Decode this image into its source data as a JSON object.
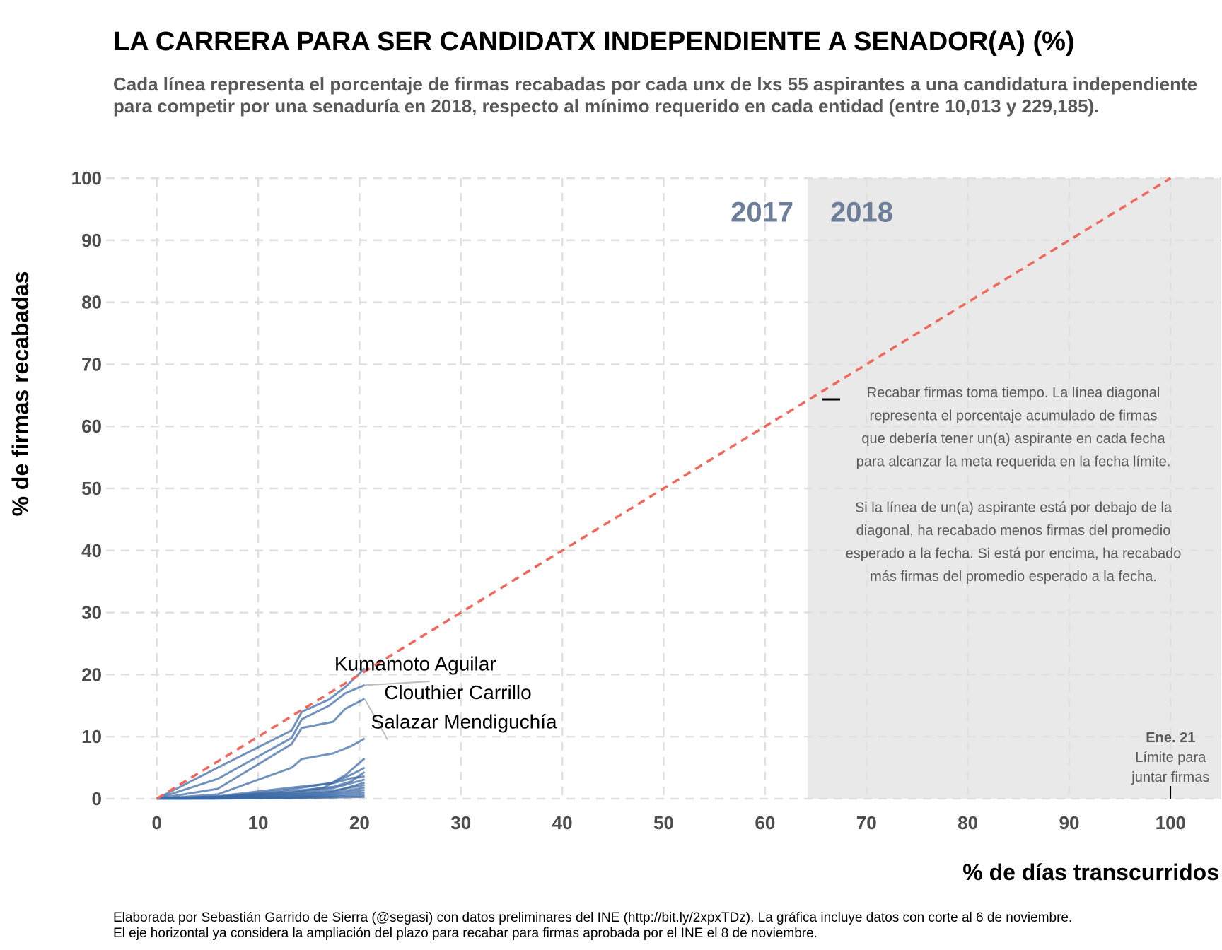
{
  "title": "LA CARRERA PARA SER CANDIDATX INDEPENDIENTE A SENADOR(A) (%)",
  "subtitle": "Cada línea representa el porcentaje de firmas recabadas por cada unx de lxs 55 aspirantes a una candidatura independiente para competir por una senaduría en 2018, respecto al mínimo requerido en cada entidad (entre 10,013 y 229,185).",
  "footer": {
    "line1": "Elaborada por Sebastián Garrido de Sierra (@segasi) con datos preliminares del INE (http://bit.ly/2xpxTDz). La gráfica incluye datos con corte al 6 de noviembre.",
    "line2": "El eje horizontal ya considera la ampliación del plazo para recabar para firmas aprobada por el INE el 8 de noviembre."
  },
  "chart_data": {
    "type": "line",
    "xlabel": "% de días transcurridos",
    "ylabel": "% de firmas recabadas",
    "xlim": [
      -5,
      105
    ],
    "ylim": [
      0,
      100
    ],
    "x_ticks": [
      0,
      10,
      20,
      30,
      40,
      50,
      60,
      70,
      80,
      90,
      100
    ],
    "y_ticks": [
      0,
      10,
      20,
      30,
      40,
      50,
      60,
      70,
      80,
      90,
      100
    ],
    "grid": true,
    "shaded_region": {
      "x_start": 64.2,
      "x_end": 105,
      "color": "#e9e9e9"
    },
    "year_labels": {
      "left": "2017",
      "right": "2018"
    },
    "reference_line": {
      "name": "diagonal",
      "x": [
        0,
        100
      ],
      "y": [
        0,
        100
      ],
      "color": "#f0685c",
      "style": "dashed"
    },
    "series_color": "#3c6aa5",
    "series": [
      {
        "name": "Kumamoto Aguilar",
        "x": [
          0,
          6,
          13.3,
          14.3,
          17,
          18.6,
          20.5
        ],
        "y": [
          0,
          5,
          11,
          14,
          16,
          18,
          21
        ]
      },
      {
        "name": "Clouthier Carrillo",
        "x": [
          0,
          6,
          13.3,
          14.3,
          17,
          18.6,
          20.5
        ],
        "y": [
          0,
          3.2,
          9.8,
          12.8,
          15,
          17,
          18.3
        ]
      },
      {
        "name": "Salazar Mendiguchía",
        "x": [
          0,
          6,
          13.3,
          14.3,
          17.4,
          18.6,
          20.5
        ],
        "y": [
          0,
          1.6,
          8.8,
          11.4,
          12.4,
          14.5,
          16.1
        ]
      },
      {
        "values_x": null,
        "x": [
          0,
          6,
          13.3,
          14.3,
          17.4,
          19.2,
          20.5
        ],
        "y": [
          0,
          0.7,
          5,
          6.4,
          7.3,
          8.5,
          9.7
        ]
      },
      {
        "x": [
          0,
          6,
          13.3,
          16.5,
          18.6,
          20.5
        ],
        "y": [
          0,
          0.3,
          1,
          1.8,
          3.8,
          6.5
        ]
      },
      {
        "x": [
          0,
          6,
          13.3,
          17.4,
          19.2,
          20.5
        ],
        "y": [
          0,
          0.2,
          1.5,
          2.6,
          3.9,
          5.0
        ]
      },
      {
        "x": [
          0,
          6,
          13.3,
          17.4,
          19.2,
          20.5
        ],
        "y": [
          0,
          0.3,
          1.2,
          1.9,
          2.8,
          4.3
        ]
      },
      {
        "x": [
          0,
          6,
          13.3,
          17.4,
          19.2,
          20.5
        ],
        "y": [
          0,
          0.4,
          1.8,
          2.5,
          3.3,
          3.6
        ]
      },
      {
        "x": [
          0,
          6,
          13.3,
          17.4,
          20.5
        ],
        "y": [
          0,
          0.2,
          0.9,
          1.7,
          3.1
        ]
      },
      {
        "x": [
          0,
          6,
          13.3,
          17.4,
          20.5
        ],
        "y": [
          0,
          0.1,
          0.6,
          1.1,
          2.6
        ]
      },
      {
        "x": [
          0,
          6,
          13.3,
          17.4,
          20.5
        ],
        "y": [
          0,
          0.2,
          0.7,
          1.3,
          2.2
        ]
      },
      {
        "x": [
          0,
          6,
          13.3,
          17.4,
          20.5
        ],
        "y": [
          0,
          0.1,
          0.4,
          0.9,
          1.8
        ]
      },
      {
        "x": [
          0,
          6,
          13.3,
          17.4,
          20.5
        ],
        "y": [
          0,
          0.1,
          0.3,
          0.7,
          1.4
        ]
      },
      {
        "x": [
          0,
          6,
          13.3,
          17.4,
          20.5
        ],
        "y": [
          0,
          0.05,
          0.2,
          0.5,
          1.0
        ]
      },
      {
        "x": [
          0,
          6,
          13.3,
          17.4,
          20.5
        ],
        "y": [
          0,
          0.05,
          0.15,
          0.3,
          0.6
        ]
      },
      {
        "x": [
          0,
          6,
          13.3,
          17.4,
          20.5
        ],
        "y": [
          0,
          0.02,
          0.1,
          0.2,
          0.3
        ]
      }
    ],
    "series_labels": [
      {
        "text": "Kumamoto Aguilar",
        "x": 25.5,
        "y": 21.8
      },
      {
        "text": "Clouthier Carrillo",
        "x": 29.7,
        "y": 17.2
      },
      {
        "text": "Salazar Mendiguchía",
        "x": 30.3,
        "y": 12.5
      }
    ],
    "annotation": {
      "lines": [
        "Recabar firmas toma tiempo. La línea diagonal",
        "representa el porcentaje acumulado de firmas",
        "que debería tener un(a) aspirante en cada fecha",
        "para alcanzar la meta requerida en la fecha límite.",
        "",
        "Si la línea de un(a) aspirante está por debajo de la",
        "diagonal, ha recabado menos firmas del promedio",
        "esperado a la fecha. Si está por encima, ha recabado",
        "más firmas del promedio esperado a la fecha."
      ]
    },
    "deadline": {
      "title": "Ene. 21",
      "line1": "Límite para",
      "line2": "juntar firmas",
      "x": 100
    }
  }
}
